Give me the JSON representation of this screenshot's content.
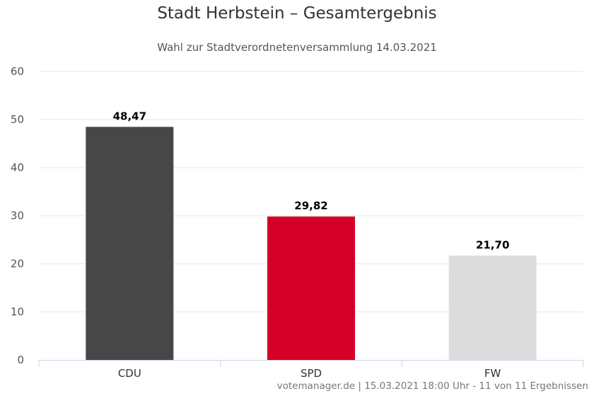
{
  "chart_data": {
    "type": "bar",
    "title": "Stadt Herbstein – Gesamtergebnis",
    "subtitle": "Wahl zur Stadtverordnetenversammlung 14.03.2021",
    "categories": [
      "CDU",
      "SPD",
      "FW"
    ],
    "values": [
      48.47,
      29.82,
      21.7
    ],
    "value_labels": [
      "48,47",
      "29,82",
      "21,70"
    ],
    "colors": [
      "#474747",
      "#d40028",
      "#dcdcdc"
    ],
    "ylim": [
      0,
      60
    ],
    "yticks": [
      "0",
      "10",
      "20",
      "30",
      "40",
      "50",
      "60"
    ],
    "grid": true,
    "legend": "none"
  },
  "credits": "votemanager.de | 15.03.2021 18:00 Uhr - 11 von 11 Ergebnissen"
}
